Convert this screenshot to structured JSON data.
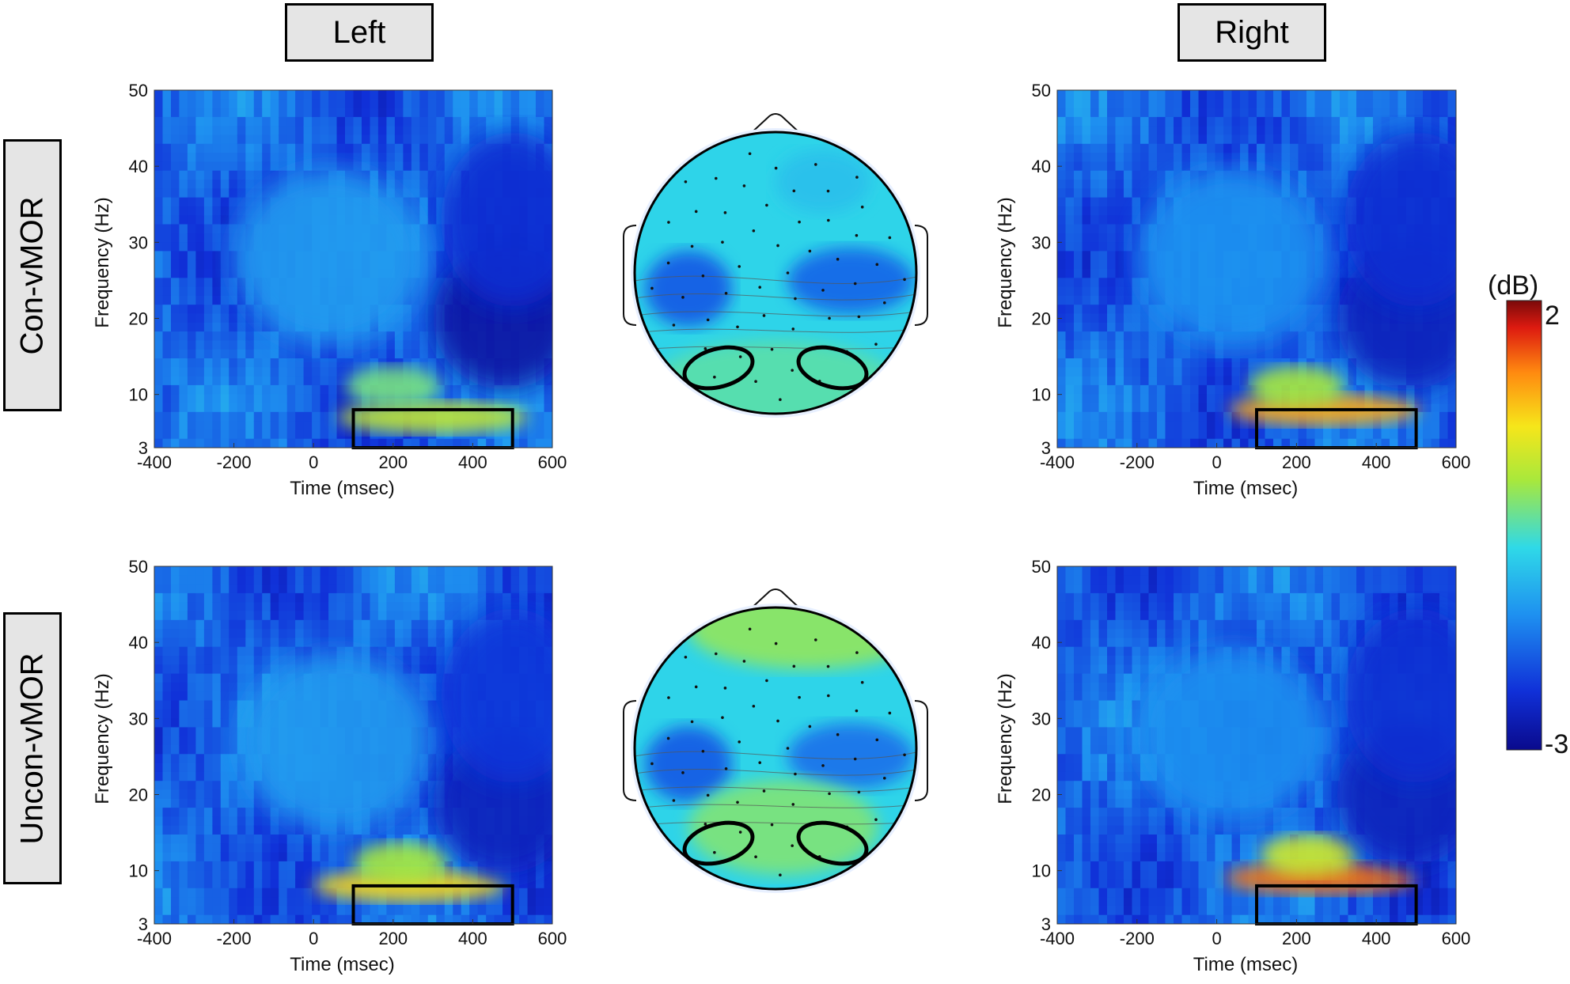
{
  "columns": {
    "left": "Left",
    "right": "Right"
  },
  "rows": {
    "top": "Con-vMOR",
    "bottom": "Uncon-vMOR"
  },
  "colorbar": {
    "unit": "(dB)",
    "max_label": "2",
    "min_label": "-3"
  },
  "colors": {
    "dark_blue": "#0a0a8c",
    "blue": "#1a5ee6",
    "cyan": "#2fd9e8",
    "green_yellow": "#a8e83c",
    "yellow": "#f6e61a",
    "orange": "#ff8a10",
    "red": "#dd1a10",
    "dark_red": "#7a0a0a"
  },
  "chart_data": [
    {
      "type": "heatmap",
      "panel": "Con-vMOR / Left",
      "xlabel": "Time (msec)",
      "ylabel": "Frequency (Hz)",
      "xlim": [
        -400,
        600
      ],
      "ylim": [
        3,
        50
      ],
      "xticks": [
        "-400",
        "-200",
        "0",
        "200",
        "400",
        "600"
      ],
      "yticks": [
        "3",
        "10",
        "20",
        "30",
        "40",
        "50"
      ],
      "color_range_db": [
        -3,
        2
      ],
      "roi_box": {
        "time": [
          100,
          500
        ],
        "freq": [
          3,
          8
        ]
      },
      "features": [
        {
          "time": 300,
          "freq": 7,
          "value_db": 0.2
        },
        {
          "time": 200,
          "freq": 11,
          "value_db": -0.3
        },
        {
          "time": 480,
          "freq": 20,
          "value_db": -2.8
        },
        {
          "time": 500,
          "freq": 33,
          "value_db": -2.4
        },
        {
          "time": 40,
          "freq": 28,
          "value_db": -1.4
        }
      ]
    },
    {
      "type": "heatmap",
      "panel": "Con-vMOR / Right",
      "xlabel": "Time (msec)",
      "ylabel": "Frequency (Hz)",
      "xlim": [
        -400,
        600
      ],
      "ylim": [
        3,
        50
      ],
      "xticks": [
        "-400",
        "-200",
        "0",
        "200",
        "400",
        "600"
      ],
      "yticks": [
        "3",
        "10",
        "20",
        "30",
        "40",
        "50"
      ],
      "color_range_db": [
        -3,
        2
      ],
      "roi_box": {
        "time": [
          100,
          500
        ],
        "freq": [
          3,
          8
        ]
      },
      "features": [
        {
          "time": 270,
          "freq": 8,
          "value_db": 1.0
        },
        {
          "time": 200,
          "freq": 11,
          "value_db": 0.0
        },
        {
          "time": 480,
          "freq": 20,
          "value_db": -2.6
        },
        {
          "time": 500,
          "freq": 33,
          "value_db": -2.4
        },
        {
          "time": 40,
          "freq": 28,
          "value_db": -1.5
        }
      ]
    },
    {
      "type": "heatmap",
      "panel": "Uncon-vMOR / Left",
      "xlabel": "Time (msec)",
      "ylabel": "Frequency (Hz)",
      "xlim": [
        -400,
        600
      ],
      "ylim": [
        3,
        50
      ],
      "xticks": [
        "-400",
        "-200",
        "0",
        "200",
        "400",
        "600"
      ],
      "yticks": [
        "3",
        "10",
        "20",
        "30",
        "40",
        "50"
      ],
      "color_range_db": [
        -3,
        2
      ],
      "roi_box": {
        "time": [
          100,
          500
        ],
        "freq": [
          3,
          8
        ]
      },
      "features": [
        {
          "time": 240,
          "freq": 8,
          "value_db": 0.7
        },
        {
          "time": 220,
          "freq": 11,
          "value_db": 0.0
        },
        {
          "time": 480,
          "freq": 19,
          "value_db": -2.6
        },
        {
          "time": 500,
          "freq": 33,
          "value_db": -2.3
        },
        {
          "time": 60,
          "freq": 27,
          "value_db": -1.4
        }
      ]
    },
    {
      "type": "heatmap",
      "panel": "Uncon-vMOR / Right",
      "xlabel": "Time (msec)",
      "ylabel": "Frequency (Hz)",
      "xlim": [
        -400,
        600
      ],
      "ylim": [
        3,
        50
      ],
      "xticks": [
        "-400",
        "-200",
        "0",
        "200",
        "400",
        "600"
      ],
      "yticks": [
        "3",
        "10",
        "20",
        "30",
        "40",
        "50"
      ],
      "color_range_db": [
        -3,
        2
      ],
      "roi_box": {
        "time": [
          100,
          500
        ],
        "freq": [
          3,
          8
        ]
      },
      "features": [
        {
          "time": 260,
          "freq": 9,
          "value_db": 1.3
        },
        {
          "time": 230,
          "freq": 12,
          "value_db": 0.3
        },
        {
          "time": 480,
          "freq": 20,
          "value_db": -2.6
        },
        {
          "time": 500,
          "freq": 33,
          "value_db": -2.4
        },
        {
          "time": 40,
          "freq": 28,
          "value_db": -1.5
        }
      ]
    },
    {
      "type": "heatmap",
      "panel": "Con-vMOR / scalp topography",
      "color_range_db": [
        -3,
        2
      ],
      "rois": [
        "left posterior",
        "right posterior"
      ],
      "features": [
        {
          "region": "frontal-midline",
          "value_db": -1.0
        },
        {
          "region": "left temporal",
          "value_db": -1.9
        },
        {
          "region": "right central",
          "value_db": -1.8
        },
        {
          "region": "occipital",
          "value_db": -0.5
        }
      ]
    },
    {
      "type": "heatmap",
      "panel": "Uncon-vMOR / scalp topography",
      "color_range_db": [
        -3,
        2
      ],
      "rois": [
        "left posterior",
        "right posterior"
      ],
      "features": [
        {
          "region": "frontal",
          "value_db": -0.2
        },
        {
          "region": "left temporal",
          "value_db": -1.9
        },
        {
          "region": "right central",
          "value_db": -1.7
        },
        {
          "region": "parieto-occipital",
          "value_db": -0.3
        }
      ]
    }
  ]
}
